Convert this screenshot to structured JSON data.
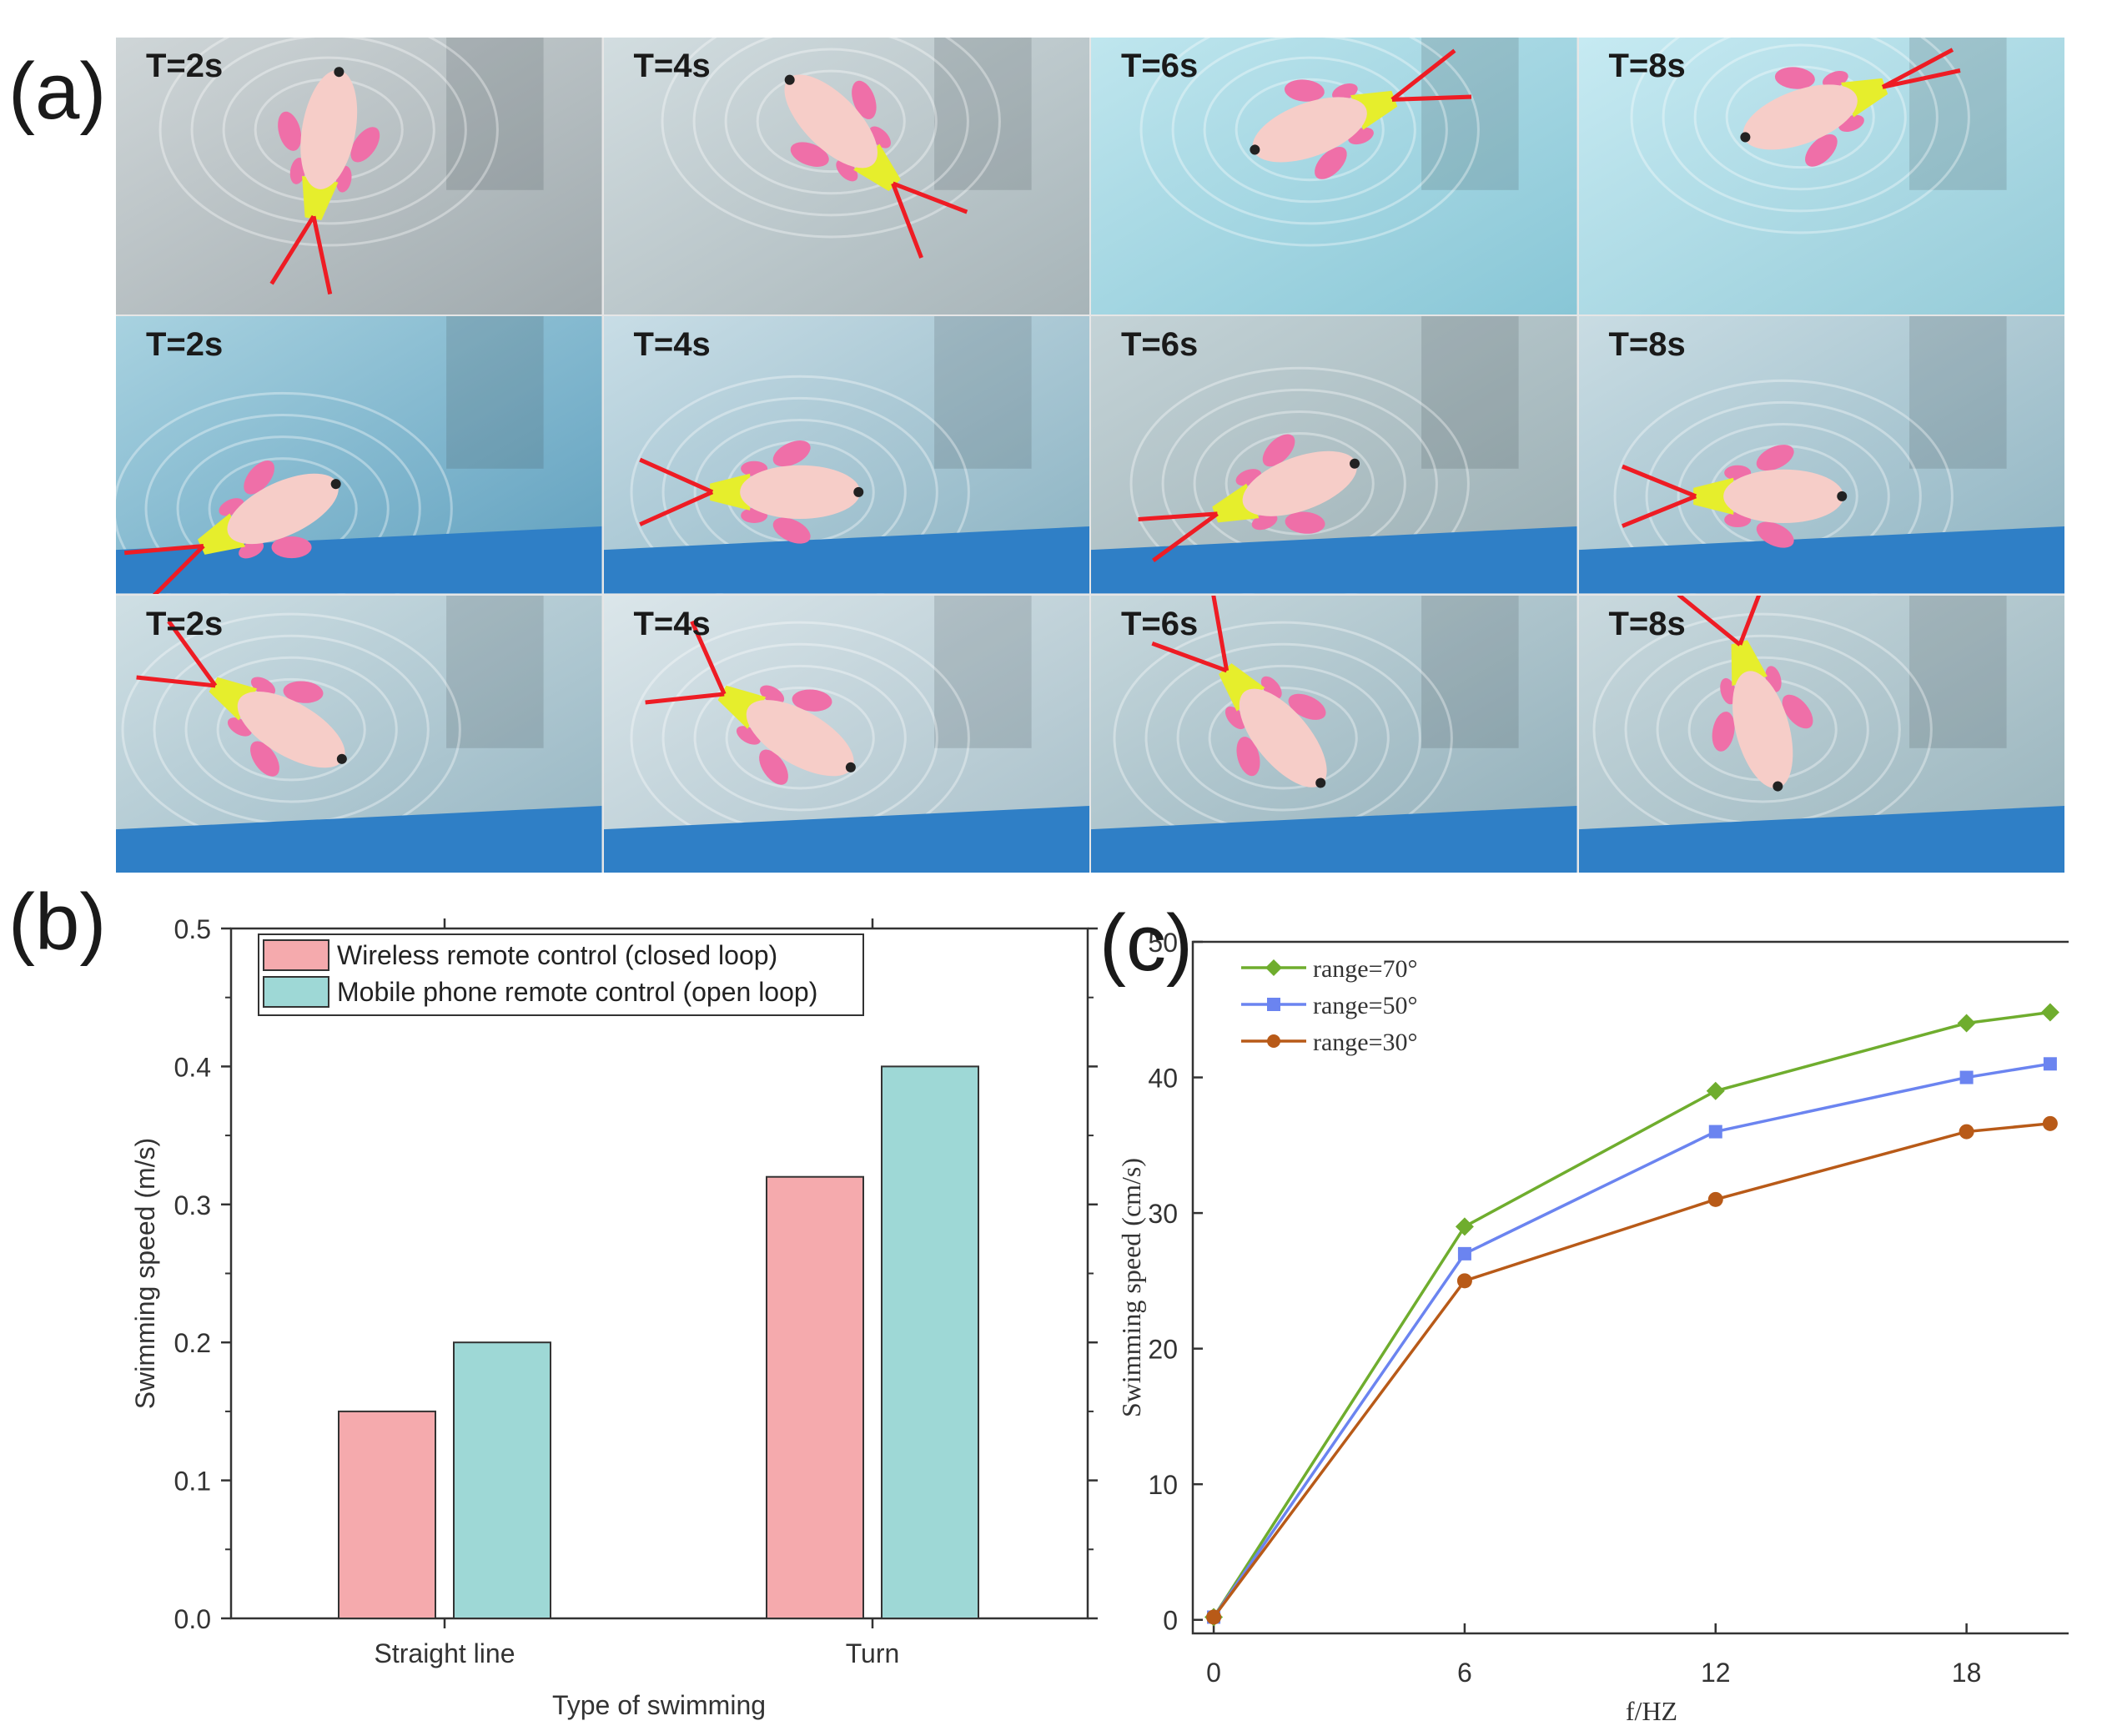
{
  "panels": {
    "a": "(a)",
    "b": "(b)",
    "c": "(c)"
  },
  "frames": {
    "rows": [
      [
        "T=2s",
        "T=4s",
        "T=6s",
        "T=8s"
      ],
      [
        "T=2s",
        "T=4s",
        "T=6s",
        "T=8s"
      ],
      [
        "T=2s",
        "T=4s",
        "T=6s",
        "T=8s"
      ]
    ],
    "colors": {
      "fish_body": "#f6cdc8",
      "fish_fin": "#ef6fa8",
      "tail": "#e6ee2c",
      "angle_lines": "#ee1c24"
    }
  },
  "chart_data": [
    {
      "type": "bar",
      "categories": [
        "Straight line",
        "Turn"
      ],
      "series": [
        {
          "name": "Wireless remote control (closed loop)",
          "values": [
            0.15,
            0.32
          ],
          "color": "#f5aaad"
        },
        {
          "name": "Mobile phone remote control (open loop)",
          "values": [
            0.2,
            0.4
          ],
          "color": "#9ed8d6"
        }
      ],
      "xlabel": "Type of swimming",
      "ylabel": "Swimming speed (m/s)",
      "ylim": [
        0,
        0.5
      ],
      "yticks": [
        "0.0",
        "0.1",
        "0.2",
        "0.3",
        "0.4",
        "0.5"
      ],
      "legend": "top-left"
    },
    {
      "type": "line",
      "xlabel": "f/HZ",
      "ylabel": "Swimming speed (cm/s)",
      "xlim": [
        -0.5,
        20.8
      ],
      "ylim": [
        -1,
        50
      ],
      "xticks": [
        "0",
        "6",
        "12",
        "18"
      ],
      "yticks": [
        "0",
        "10",
        "20",
        "30",
        "40",
        "50"
      ],
      "legend": "top-left",
      "series": [
        {
          "name": "range=70°",
          "color": "#6fad2e",
          "marker": "diamond",
          "x": [
            0,
            6,
            12,
            18,
            20
          ],
          "y": [
            0.2,
            29,
            39,
            44,
            44.8
          ]
        },
        {
          "name": "range=50°",
          "color": "#6b84f0",
          "marker": "square",
          "x": [
            0,
            6,
            12,
            18,
            20
          ],
          "y": [
            0.2,
            27,
            36,
            40,
            41
          ]
        },
        {
          "name": "range=30°",
          "color": "#b85a18",
          "marker": "circle",
          "x": [
            0,
            6,
            12,
            18,
            20
          ],
          "y": [
            0.2,
            25,
            31,
            36,
            36.6
          ]
        }
      ]
    }
  ]
}
